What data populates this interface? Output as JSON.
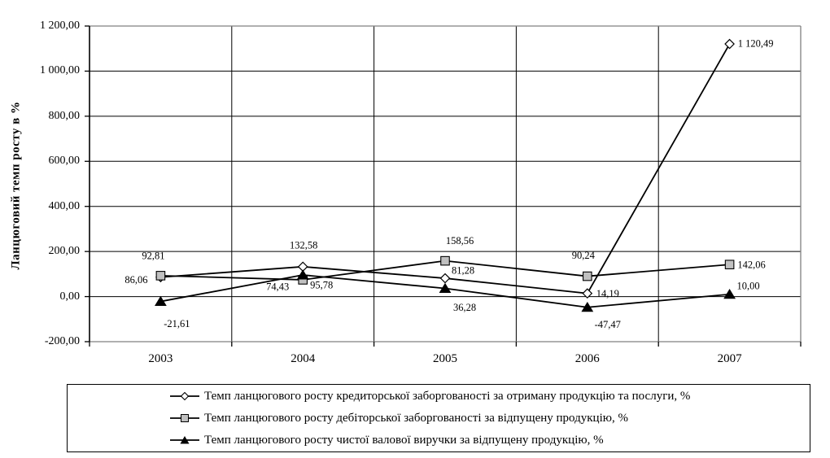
{
  "figure": {
    "y_axis_title": "Ланцюговий темп росту в %"
  },
  "chart_data": {
    "type": "line",
    "title": "",
    "xlabel": "",
    "ylabel": "Ланцюговий темп росту в %",
    "categories": [
      "2003",
      "2004",
      "2005",
      "2006",
      "2007"
    ],
    "y_axis": {
      "min": -200,
      "max": 1200,
      "step": 200,
      "tick_labels": [
        "1 200,00",
        "1 000,00",
        "800,00",
        "600,00",
        "400,00",
        "200,00",
        "0,00",
        "-200,00"
      ]
    },
    "grid": true,
    "legend_position": "bottom",
    "series": [
      {
        "name": "Темп ланцюгового росту кредиторської заборгованості за отриману продукцію та послуги, %",
        "marker": "diamond",
        "marker_fill": "#FFFFFF",
        "line_color": "#000000",
        "values": [
          86.06,
          132.58,
          81.28,
          14.19,
          1120.49
        ],
        "labels": [
          "86,06",
          "132,58",
          "81,28",
          "14,19",
          "1 120,49"
        ],
        "label_offsets": [
          [
            -30,
            3
          ],
          [
            1,
            -27
          ],
          [
            22,
            -10
          ],
          [
            25,
            0
          ],
          [
            32,
            -1
          ]
        ]
      },
      {
        "name": "Темп ланцюгового росту дебіторської заборгованості за відпущену продукцію, %",
        "marker": "square",
        "marker_fill": "#C0C0C0",
        "line_color": "#000000",
        "values": [
          92.81,
          74.43,
          158.56,
          90.24,
          142.06
        ],
        "labels": [
          "92,81",
          "74,43",
          "158,56",
          "90,24",
          "142,06"
        ],
        "label_offsets": [
          [
            -9,
            -25
          ],
          [
            -31,
            8
          ],
          [
            18,
            -25
          ],
          [
            -5,
            -26
          ],
          [
            27,
            0
          ]
        ]
      },
      {
        "name": "Темп ланцюгового росту чистої валової виручки за відпущену продукцію, %",
        "marker": "triangle",
        "marker_fill": "#000000",
        "line_color": "#000000",
        "values": [
          -21.61,
          95.78,
          36.28,
          -47.47,
          10.0
        ],
        "labels": [
          "-21,61",
          "95,78",
          "36,28",
          "-47,47",
          "10,00"
        ],
        "label_offsets": [
          [
            20,
            27
          ],
          [
            23,
            12
          ],
          [
            24,
            23
          ],
          [
            25,
            21
          ],
          [
            23,
            -11
          ]
        ]
      }
    ],
    "colors": {
      "plot_border": "#808080",
      "gridline": "#000000",
      "axis": "#000000",
      "background": "#FFFFFF",
      "series_line": "#000000"
    }
  }
}
